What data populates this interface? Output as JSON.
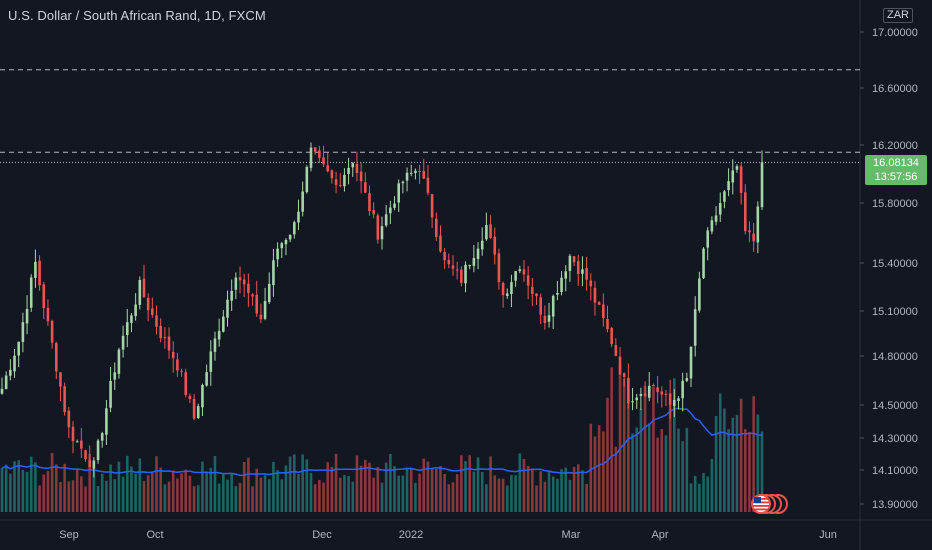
{
  "title": "U.S. Dollar / South African Rand, 1D, FXCM",
  "currency_label": "ZAR",
  "current_price": "16.08134",
  "countdown": "13:57:56",
  "colors": {
    "background": "#131722",
    "up": "#a5d6a7",
    "down": "#ef5350",
    "volume_up": "#26a69a",
    "volume_down": "#ef5350",
    "ma_line": "#2962ff",
    "price_tag": "#66bb6a"
  },
  "icons": [
    "us-flag-icon",
    "event-marker-icon"
  ],
  "chart_data": {
    "type": "candlestick",
    "symbol": "USDZAR",
    "y_tick_labels": [
      "17.00000",
      "16.60000",
      "16.20000",
      "15.80000",
      "15.40000",
      "15.10000",
      "14.80000",
      "14.50000",
      "14.30000",
      "14.10000",
      "13.90000"
    ],
    "y_ticks": [
      17.0,
      16.6,
      16.2,
      15.8,
      15.4,
      15.1,
      14.8,
      14.5,
      14.3,
      14.1,
      13.9
    ],
    "x_tick_labels": [
      "Sep",
      "Oct",
      "Dec",
      "2022",
      "Mar",
      "Apr",
      "Jun"
    ],
    "horizontal_lines": [
      {
        "price": 16.73,
        "style": "dashed"
      },
      {
        "price": 16.15,
        "style": "dashed"
      },
      {
        "price": 16.08,
        "style": "dotted"
      }
    ],
    "ohlc_waypoints": [
      [
        0,
        14.6
      ],
      [
        4,
        14.9
      ],
      [
        8,
        15.4
      ],
      [
        16,
        14.35
      ],
      [
        22,
        14.12
      ],
      [
        28,
        14.85
      ],
      [
        33,
        15.25
      ],
      [
        38,
        14.95
      ],
      [
        42,
        14.75
      ],
      [
        46,
        14.42
      ],
      [
        52,
        15.0
      ],
      [
        56,
        15.35
      ],
      [
        62,
        15.05
      ],
      [
        66,
        15.5
      ],
      [
        70,
        15.65
      ],
      [
        74,
        16.15
      ],
      [
        80,
        15.92
      ],
      [
        84,
        16.1
      ],
      [
        90,
        15.6
      ],
      [
        96,
        15.95
      ],
      [
        100,
        16.05
      ],
      [
        106,
        15.4
      ],
      [
        110,
        15.3
      ],
      [
        116,
        15.65
      ],
      [
        120,
        15.2
      ],
      [
        124,
        15.4
      ],
      [
        130,
        15.05
      ],
      [
        136,
        15.45
      ],
      [
        140,
        15.3
      ],
      [
        146,
        14.9
      ],
      [
        150,
        14.55
      ],
      [
        156,
        14.62
      ],
      [
        160,
        14.5
      ],
      [
        164,
        14.65
      ],
      [
        168,
        15.5
      ],
      [
        172,
        15.8
      ],
      [
        176,
        16.05
      ],
      [
        178,
        15.6
      ],
      [
        180,
        15.55
      ],
      [
        182,
        16.08
      ]
    ],
    "volume_ma_description": "moving average of volume"
  }
}
